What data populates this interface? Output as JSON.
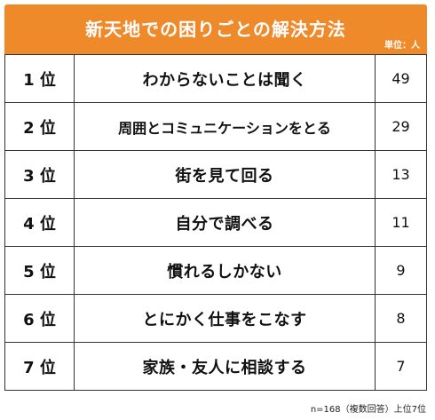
{
  "header": {
    "title": "新天地での困りごとの解決方法",
    "unit": "単位：人"
  },
  "footnote": "n=168（複数回答）上位7位",
  "chart_data": {
    "type": "table",
    "title": "新天地での困りごとの解決方法",
    "unit": "単位：人",
    "rows": [
      {
        "rank": "1 位",
        "answer": "わからないことは聞く",
        "count": "49"
      },
      {
        "rank": "2 位",
        "answer": "周囲とコミュニケーションをとる",
        "count": "29"
      },
      {
        "rank": "3 位",
        "answer": "街を見て回る",
        "count": "13"
      },
      {
        "rank": "4 位",
        "answer": "自分で調べる",
        "count": "11"
      },
      {
        "rank": "5 位",
        "answer": "慣れるしかない",
        "count": "9"
      },
      {
        "rank": "6 位",
        "answer": "とにかく仕事をこなす",
        "count": "8"
      },
      {
        "rank": "7 位",
        "answer": "家族・友人に相談する",
        "count": "7"
      }
    ]
  },
  "colors": {
    "header_bg": "#ef8a2b",
    "header_text": "#ffffff",
    "border": "#333333"
  }
}
